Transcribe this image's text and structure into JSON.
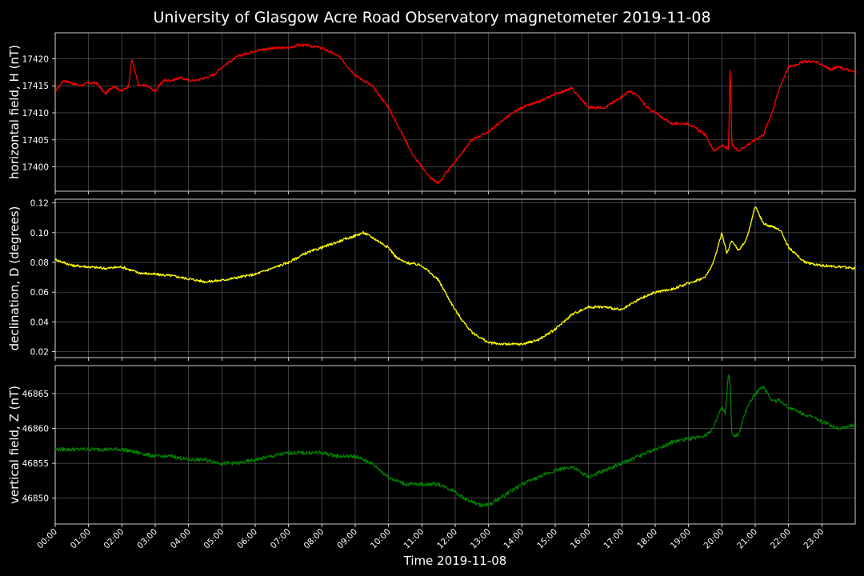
{
  "title": "University of Glasgow Acre Road Observatory magnetometer 2019-11-08",
  "xlabel": "Time 2019-11-08",
  "x_ticks": [
    "00:00",
    "01:00",
    "02:00",
    "03:00",
    "04:00",
    "05:00",
    "06:00",
    "07:00",
    "08:00",
    "09:00",
    "10:00",
    "11:00",
    "12:00",
    "13:00",
    "14:00",
    "15:00",
    "16:00",
    "17:00",
    "18:00",
    "19:00",
    "20:00",
    "21:00",
    "22:00",
    "23:00"
  ],
  "chart_data": [
    {
      "type": "line",
      "ylabel": "horizontal field, H (nT)",
      "color": "#ff0000",
      "ylim": [
        17395.5,
        17424.8
      ],
      "yticks": [
        17400,
        17405,
        17410,
        17415,
        17420
      ],
      "xlim": [
        0,
        24
      ],
      "grid": true,
      "series": [
        {
          "x": [
            0,
            0.25,
            0.5,
            0.75,
            1,
            1.25,
            1.5,
            1.75,
            2,
            2.2,
            2.3,
            2.5,
            2.75,
            3,
            3.25,
            3.5,
            3.75,
            4,
            4.25,
            4.5,
            4.75,
            5,
            5.5,
            6,
            6.5,
            7,
            7.25,
            7.5,
            8,
            8.5,
            9,
            9.5,
            10,
            10.25,
            10.5,
            10.75,
            11,
            11.25,
            11.5,
            11.75,
            12,
            12.25,
            12.5,
            13,
            13.5,
            14,
            14.25,
            14.5,
            15,
            15.25,
            15.5,
            16,
            16.5,
            17,
            17.25,
            17.5,
            17.75,
            18,
            18.5,
            19,
            19.5,
            19.75,
            19.9,
            20.05,
            20.2,
            20.25,
            20.3,
            20.5,
            20.75,
            21,
            21.25,
            21.5,
            21.75,
            22,
            22.5,
            22.75,
            23,
            23.25,
            23.5,
            24
          ],
          "y": [
            17414,
            17416,
            17415.5,
            17415,
            17415.5,
            17415.5,
            17413.5,
            17415,
            17414,
            17415,
            17420,
            17415,
            17415,
            17414,
            17416,
            17416,
            17416.5,
            17416,
            17416,
            17416.5,
            17417,
            17418.5,
            17420.5,
            17421.5,
            17422,
            17422,
            17422.5,
            17422.5,
            17422,
            17420.5,
            17417,
            17415,
            17411,
            17408,
            17405,
            17402,
            17400,
            17398,
            17397,
            17399,
            17401,
            17403,
            17405,
            17406.5,
            17409,
            17411,
            17411.5,
            17412,
            17413.5,
            17414,
            17414.5,
            17411,
            17411,
            17413,
            17414,
            17413,
            17411,
            17410,
            17408,
            17408,
            17406,
            17403,
            17403.5,
            17404,
            17403,
            17419,
            17404,
            17403,
            17404,
            17405,
            17406,
            17410,
            17415,
            17418.5,
            17419.5,
            17419.5,
            17419,
            17418,
            17418.5,
            17417.5
          ]
        }
      ]
    },
    {
      "type": "line",
      "ylabel": "declination, D (degrees)",
      "color": "#ffff00",
      "ylim": [
        0.016,
        0.1225
      ],
      "yticks": [
        0.02,
        0.04,
        0.06,
        0.08,
        0.1,
        0.12
      ],
      "xlim": [
        0,
        24
      ],
      "grid": true,
      "series": [
        {
          "x": [
            0,
            0.5,
            1,
            1.5,
            2,
            2.5,
            3,
            3.5,
            4,
            4.25,
            4.5,
            5,
            5.5,
            6,
            6.5,
            7,
            7.5,
            8,
            8.5,
            9,
            9.25,
            9.5,
            10,
            10.25,
            10.5,
            11,
            11.25,
            11.5,
            11.75,
            12,
            12.25,
            12.5,
            13,
            13.5,
            14,
            14.5,
            15,
            15.5,
            16,
            16.5,
            17,
            17.5,
            18,
            18.5,
            19,
            19.5,
            19.75,
            20,
            20.15,
            20.3,
            20.5,
            20.75,
            21,
            21.25,
            21.5,
            21.75,
            22,
            22.5,
            23,
            23.5,
            24
          ],
          "y": [
            0.082,
            0.078,
            0.077,
            0.076,
            0.077,
            0.073,
            0.072,
            0.071,
            0.069,
            0.068,
            0.067,
            0.068,
            0.07,
            0.072,
            0.076,
            0.08,
            0.086,
            0.09,
            0.094,
            0.098,
            0.1,
            0.097,
            0.09,
            0.083,
            0.08,
            0.078,
            0.073,
            0.068,
            0.058,
            0.048,
            0.04,
            0.033,
            0.026,
            0.025,
            0.025,
            0.028,
            0.035,
            0.045,
            0.05,
            0.05,
            0.048,
            0.055,
            0.06,
            0.062,
            0.066,
            0.07,
            0.08,
            0.1,
            0.086,
            0.095,
            0.088,
            0.096,
            0.118,
            0.106,
            0.104,
            0.102,
            0.09,
            0.08,
            0.078,
            0.077,
            0.076
          ]
        }
      ]
    },
    {
      "type": "line",
      "ylabel": "vertical field, Z (nT)",
      "color": "#008000",
      "ylim": [
        46846.3,
        46869
      ],
      "yticks": [
        46850,
        46855,
        46860,
        46865
      ],
      "xlim": [
        0,
        24
      ],
      "grid": true,
      "series": [
        {
          "x": [
            0,
            0.5,
            1,
            1.5,
            2,
            2.5,
            3,
            3.5,
            4,
            4.5,
            5,
            5.5,
            6,
            6.5,
            7,
            7.5,
            8,
            8.5,
            9,
            9.5,
            10,
            10.5,
            11,
            11.5,
            12,
            12.25,
            12.5,
            12.75,
            13,
            13.5,
            14,
            14.5,
            15,
            15.5,
            16,
            16.5,
            17,
            17.5,
            18,
            18.5,
            19,
            19.5,
            19.75,
            19.9,
            20,
            20.1,
            20.2,
            20.25,
            20.3,
            20.5,
            20.75,
            21,
            21.25,
            21.5,
            21.75,
            22,
            22.5,
            23,
            23.5,
            24
          ],
          "y": [
            46857,
            46857,
            46857,
            46857,
            46857,
            46856.5,
            46856,
            46856,
            46855.5,
            46855.5,
            46855,
            46855,
            46855.5,
            46856,
            46856.5,
            46856.5,
            46856.5,
            46856,
            46856,
            46855,
            46853,
            46852,
            46852,
            46852,
            46851,
            46850,
            46849.5,
            46849,
            46849,
            46850.5,
            46852,
            46853,
            46854,
            46854.5,
            46853,
            46854,
            46855,
            46856,
            46857,
            46858,
            46858.5,
            46859,
            46860,
            46862,
            46863,
            46862,
            46868,
            46866,
            46859,
            46859,
            46863,
            46865,
            46866,
            46864,
            46864,
            46863,
            46862,
            46861,
            46860,
            46860.5
          ]
        }
      ]
    }
  ]
}
